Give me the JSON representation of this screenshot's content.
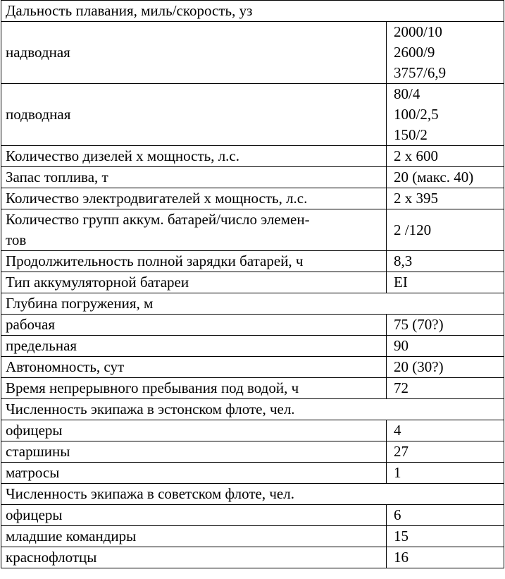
{
  "rows": [
    {
      "type": "header",
      "label": "Дальность плавания, миль/скорость, уз"
    },
    {
      "label": "надводная",
      "value": "2000/10\n2600/9\n3757/6,9"
    },
    {
      "label": "подводная",
      "value": "80/4\n100/2,5\n150/2"
    },
    {
      "label": "Количество дизелей х мощность, л.с.",
      "value": "2 х 600"
    },
    {
      "label": "Запас топлива, т",
      "value": "20 (макс. 40)"
    },
    {
      "label": "Количество электродвигателей х мощность, л.с.",
      "value": "2 х 395"
    },
    {
      "label": "Количество групп аккум. батарей/число элемен-\nтов",
      "value": "2 /120"
    },
    {
      "label": "Продолжительность полной зарядки батарей, ч",
      "value": "8,3"
    },
    {
      "label": "Тип аккумуляторной батареи",
      "value": "EI"
    },
    {
      "type": "header",
      "label": "Глубина погружения, м"
    },
    {
      "label": "рабочая",
      "value": "75 (70?)"
    },
    {
      "label": "предельная",
      "value": "90"
    },
    {
      "label": "Автономность, сут",
      "value": "20 (30?)"
    },
    {
      "label": "Время непрерывного пребывания под водой, ч",
      "value": "72"
    },
    {
      "type": "header",
      "label": "Численность экипажа в эстонском флоте, чел."
    },
    {
      "label": "офицеры",
      "value": "4"
    },
    {
      "label": "старшины",
      "value": "27"
    },
    {
      "label": "матросы",
      "value": "1"
    },
    {
      "type": "header",
      "label": "Численность экипажа в советском флоте, чел."
    },
    {
      "label": "офицеры",
      "value": "6"
    },
    {
      "label": "младшие командиры",
      "value": "15"
    },
    {
      "label": "краснофлотцы",
      "value": "16"
    }
  ]
}
